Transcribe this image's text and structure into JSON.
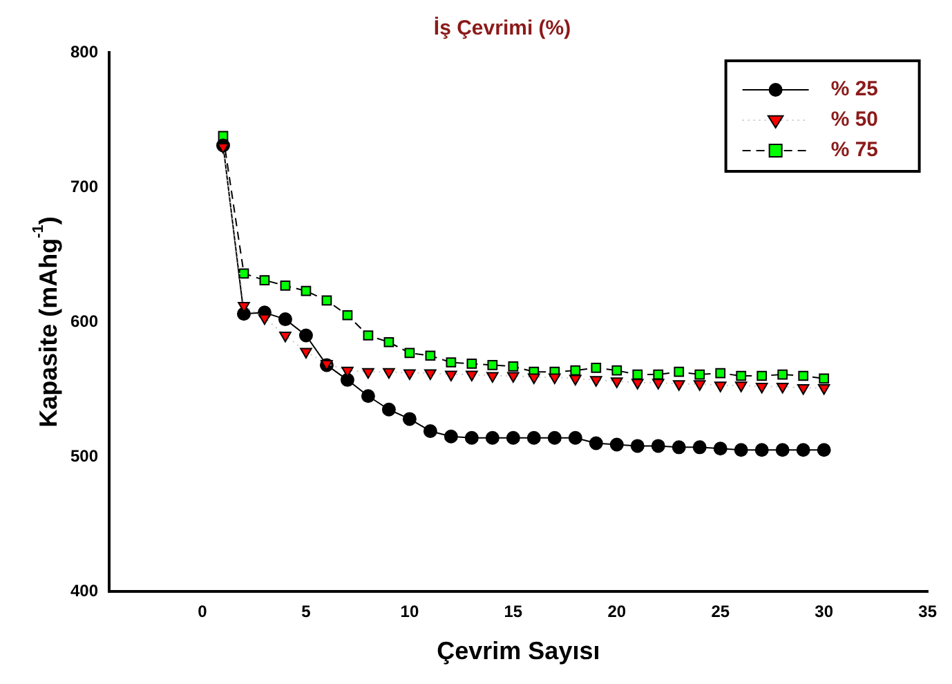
{
  "chart_data": {
    "type": "line",
    "title": "İş Çevrimi (%)",
    "xlabel": "Çevrim Sayısı",
    "ylabel": "Kapasite (mAhg$^{-1}$)",
    "x": [
      1,
      2,
      3,
      4,
      5,
      6,
      7,
      8,
      9,
      10,
      11,
      12,
      13,
      14,
      15,
      16,
      17,
      18,
      19,
      20,
      21,
      22,
      23,
      24,
      25,
      26,
      27,
      28,
      29,
      30
    ],
    "series": [
      {
        "name": "% 25",
        "color": "#000000",
        "marker": "circle",
        "line_style": "solid",
        "values": [
          731,
          606,
          607,
          602,
          590,
          568,
          557,
          545,
          535,
          528,
          519,
          515,
          514,
          514,
          514,
          514,
          514,
          514,
          510,
          509,
          508,
          508,
          507,
          507,
          506,
          505,
          505,
          505,
          505,
          505
        ]
      },
      {
        "name": "% 50",
        "color": "#ff0000",
        "marker": "triangle",
        "line_style": "dotted",
        "values": [
          730,
          612,
          603,
          590,
          578,
          569,
          564,
          563,
          563,
          562,
          562,
          561,
          561,
          560,
          560,
          559,
          559,
          558,
          557,
          556,
          555,
          555,
          554,
          554,
          553,
          553,
          552,
          552,
          551,
          551
        ]
      },
      {
        "name": "% 75",
        "color": "#00ff00",
        "marker": "square",
        "line_style": "dashed",
        "values": [
          738,
          636,
          631,
          627,
          623,
          616,
          605,
          590,
          585,
          577,
          575,
          570,
          569,
          568,
          567,
          563,
          563,
          564,
          566,
          564,
          561,
          561,
          563,
          561,
          562,
          560,
          560,
          561,
          560,
          558
        ]
      }
    ],
    "xlim": [
      -4.5,
      35
    ],
    "xticks": [
      0,
      5,
      10,
      15,
      20,
      25,
      30,
      35
    ],
    "ylim": [
      400,
      800
    ],
    "yticks": [
      400,
      500,
      600,
      700,
      800
    ],
    "grid": false,
    "legend": "top right"
  }
}
